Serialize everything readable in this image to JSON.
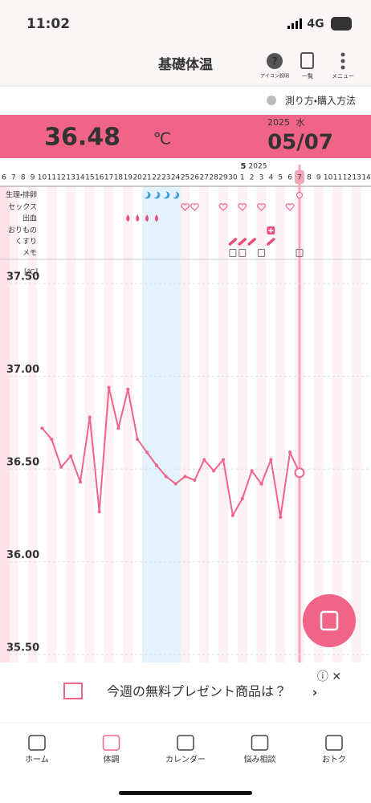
{
  "status_bar": {
    "time": "11:02",
    "network": "4G",
    "battery": "37"
  },
  "header": {
    "title": "基礎体温",
    "icons": [
      "アイコン説明",
      "一覧",
      "メニュー"
    ]
  },
  "help_link": "測り方・購入方法",
  "summary": {
    "temperature": "36.48",
    "unit": "℃",
    "year": "2025",
    "weekday": "水",
    "date": "05/07"
  },
  "month_label": {
    "month": "5",
    "year": "2025"
  },
  "record_rows": [
    "生理・排卵",
    "セックス",
    "出血",
    "おりもの",
    "くすり",
    "メモ"
  ],
  "chart_data": {
    "type": "line",
    "y_unit": "[℃]",
    "categories": [
      "6",
      "7",
      "8",
      "9",
      "10",
      "11",
      "12",
      "13",
      "14",
      "15",
      "16",
      "17",
      "18",
      "19",
      "20",
      "21",
      "22",
      "23",
      "24",
      "25",
      "26",
      "27",
      "28",
      "29",
      "30",
      "1",
      "2",
      "3",
      "4",
      "5",
      "6",
      "7",
      "8",
      "9",
      "10",
      "11",
      "12",
      "13",
      "14"
    ],
    "series": [
      {
        "color": "#f0648c",
        "values": [
          null,
          null,
          null,
          null,
          36.72,
          36.66,
          36.51,
          36.57,
          36.43,
          36.78,
          36.27,
          36.94,
          36.72,
          36.93,
          36.66,
          36.59,
          36.52,
          36.46,
          36.42,
          36.46,
          36.44,
          36.55,
          36.49,
          36.55,
          36.25,
          36.34,
          36.49,
          36.42,
          36.55,
          36.24,
          36.59,
          36.48,
          null,
          null,
          null,
          null,
          null,
          null,
          null
        ]
      }
    ],
    "ylim": [
      35.47,
      37.6
    ],
    "yticks": [
      {
        "value": 35.5,
        "label": "35.50"
      },
      {
        "value": 36,
        "label": "36.00"
      },
      {
        "value": 36.5,
        "label": "36.50"
      },
      {
        "value": 37,
        "label": "37.00"
      },
      {
        "value": 37.5,
        "label": "37.50"
      }
    ],
    "grid": true
  },
  "ad": {
    "text": "今週の無料プレゼント商品は？"
  },
  "tabs": [
    "ホーム",
    "体調",
    "カレンダー",
    "悩み相談",
    "おトク"
  ]
}
